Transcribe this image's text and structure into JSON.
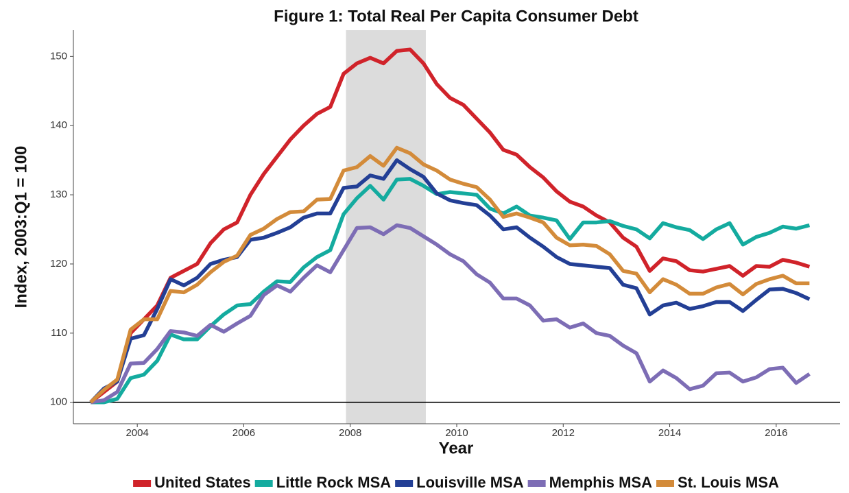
{
  "chart_data": {
    "type": "line",
    "title": "Figure 1: Total Real Per Capita Consumer Debt",
    "x_label": "Year",
    "y_label": "Index, 2003:Q1 = 100",
    "x": [
      2003.125,
      2003.375,
      2003.625,
      2003.875,
      2004.125,
      2004.375,
      2004.625,
      2004.875,
      2005.125,
      2005.375,
      2005.625,
      2005.875,
      2006.125,
      2006.375,
      2006.625,
      2006.875,
      2007.125,
      2007.375,
      2007.625,
      2007.875,
      2008.125,
      2008.375,
      2008.625,
      2008.875,
      2009.125,
      2009.375,
      2009.625,
      2009.875,
      2010.125,
      2010.375,
      2010.625,
      2010.875,
      2011.125,
      2011.375,
      2011.625,
      2011.875,
      2012.125,
      2012.375,
      2012.625,
      2012.875,
      2013.125,
      2013.375,
      2013.625,
      2013.875,
      2014.125,
      2014.375,
      2014.625,
      2014.875,
      2015.125,
      2015.375,
      2015.625,
      2015.875,
      2016.125,
      2016.375,
      2016.625
    ],
    "series": [
      {
        "name": "United States",
        "color": "#d0232a",
        "values": [
          100,
          101.5,
          103,
          110,
          112,
          114,
          118,
          119,
          120,
          123,
          125,
          126,
          130,
          133,
          135.5,
          138,
          140,
          141.7,
          142.7,
          147.5,
          149,
          149.8,
          149,
          150.8,
          151,
          149,
          146,
          144,
          143,
          141,
          139,
          136.5,
          135.8,
          134,
          132.5,
          130.5,
          129,
          128.3,
          127,
          126,
          123.8,
          122.5,
          119,
          120.8,
          120.4,
          119.1,
          118.9,
          119.3,
          119.7,
          118.3,
          119.7,
          119.6,
          120.6,
          120.2,
          119.6
        ]
      },
      {
        "name": "Little Rock MSA",
        "color": "#14ab9f",
        "values": [
          100,
          100,
          100.5,
          103.5,
          104,
          106,
          109.8,
          109.1,
          109.1,
          111,
          112.7,
          114,
          114.2,
          116,
          117.5,
          117.4,
          119.5,
          121,
          122,
          127.2,
          129.5,
          131.3,
          129.3,
          132.2,
          132.3,
          131.3,
          130.1,
          130.4,
          130.2,
          130,
          128,
          127.3,
          128.3,
          127,
          126.7,
          126.3,
          123.6,
          126,
          126,
          126.2,
          125.5,
          125,
          123.7,
          125.9,
          125.3,
          124.9,
          123.6,
          125,
          125.9,
          122.8,
          123.9,
          124.5,
          125.4,
          125.1,
          125.6
        ]
      },
      {
        "name": "Louisville MSA",
        "color": "#233f95",
        "values": [
          100,
          102,
          103,
          109.2,
          109.7,
          113.5,
          117.8,
          116.9,
          118,
          120,
          120.6,
          121,
          123.5,
          123.8,
          124.5,
          125.3,
          126.7,
          127.3,
          127.3,
          131,
          131.2,
          132.8,
          132.3,
          135,
          133.7,
          132.6,
          130.2,
          129.2,
          128.8,
          128.5,
          127,
          125,
          125.3,
          123.8,
          122.5,
          121,
          120,
          119.8,
          119.6,
          119.4,
          117,
          116.5,
          112.7,
          114,
          114.4,
          113.5,
          113.9,
          114.5,
          114.5,
          113.2,
          114.8,
          116.3,
          116.4,
          115.8,
          114.9
        ]
      },
      {
        "name": "Memphis MSA",
        "color": "#7d6db5",
        "values": [
          100,
          100.3,
          101.5,
          105.6,
          105.7,
          107.7,
          110.3,
          110.1,
          109.6,
          111.2,
          110.2,
          111.4,
          112.5,
          115.5,
          116.9,
          116,
          118,
          119.8,
          118.8,
          122,
          125.2,
          125.3,
          124.3,
          125.6,
          125.2,
          124,
          122.8,
          121.4,
          120.4,
          118.5,
          117.3,
          115,
          115,
          114,
          111.8,
          112,
          110.8,
          111.4,
          110,
          109.6,
          108.2,
          107.1,
          103,
          104.6,
          103.5,
          101.9,
          102.4,
          104.2,
          104.3,
          103,
          103.6,
          104.8,
          105,
          102.8,
          104.1
        ]
      },
      {
        "name": "St. Louis MSA",
        "color": "#d38b3a",
        "values": [
          100,
          101.8,
          103.3,
          110.5,
          112,
          112,
          116.1,
          115.9,
          117,
          118.8,
          120.3,
          121.2,
          124.2,
          125.1,
          126.5,
          127.5,
          127.6,
          129.3,
          129.4,
          133.5,
          134,
          135.6,
          134.2,
          136.8,
          136,
          134.4,
          133.5,
          132.2,
          131.6,
          131.1,
          129.3,
          126.8,
          127.3,
          126.7,
          126,
          123.8,
          122.7,
          122.8,
          122.6,
          121.4,
          119,
          118.6,
          115.9,
          117.8,
          117,
          115.7,
          115.7,
          116.6,
          117.1,
          115.6,
          117.1,
          117.8,
          118.3,
          117.2,
          117.2
        ]
      }
    ],
    "xlim": [
      2002.8,
      2017.2
    ],
    "xticks": [
      2004,
      2006,
      2008,
      2010,
      2012,
      2014,
      2016
    ],
    "ylim": [
      96.9,
      153.8
    ],
    "yticks": [
      100,
      110,
      120,
      130,
      140,
      150
    ],
    "shade": [
      2007.92,
      2009.42
    ],
    "shade_color": "#dcdcdc",
    "hline": 100,
    "legend": "bottom"
  }
}
